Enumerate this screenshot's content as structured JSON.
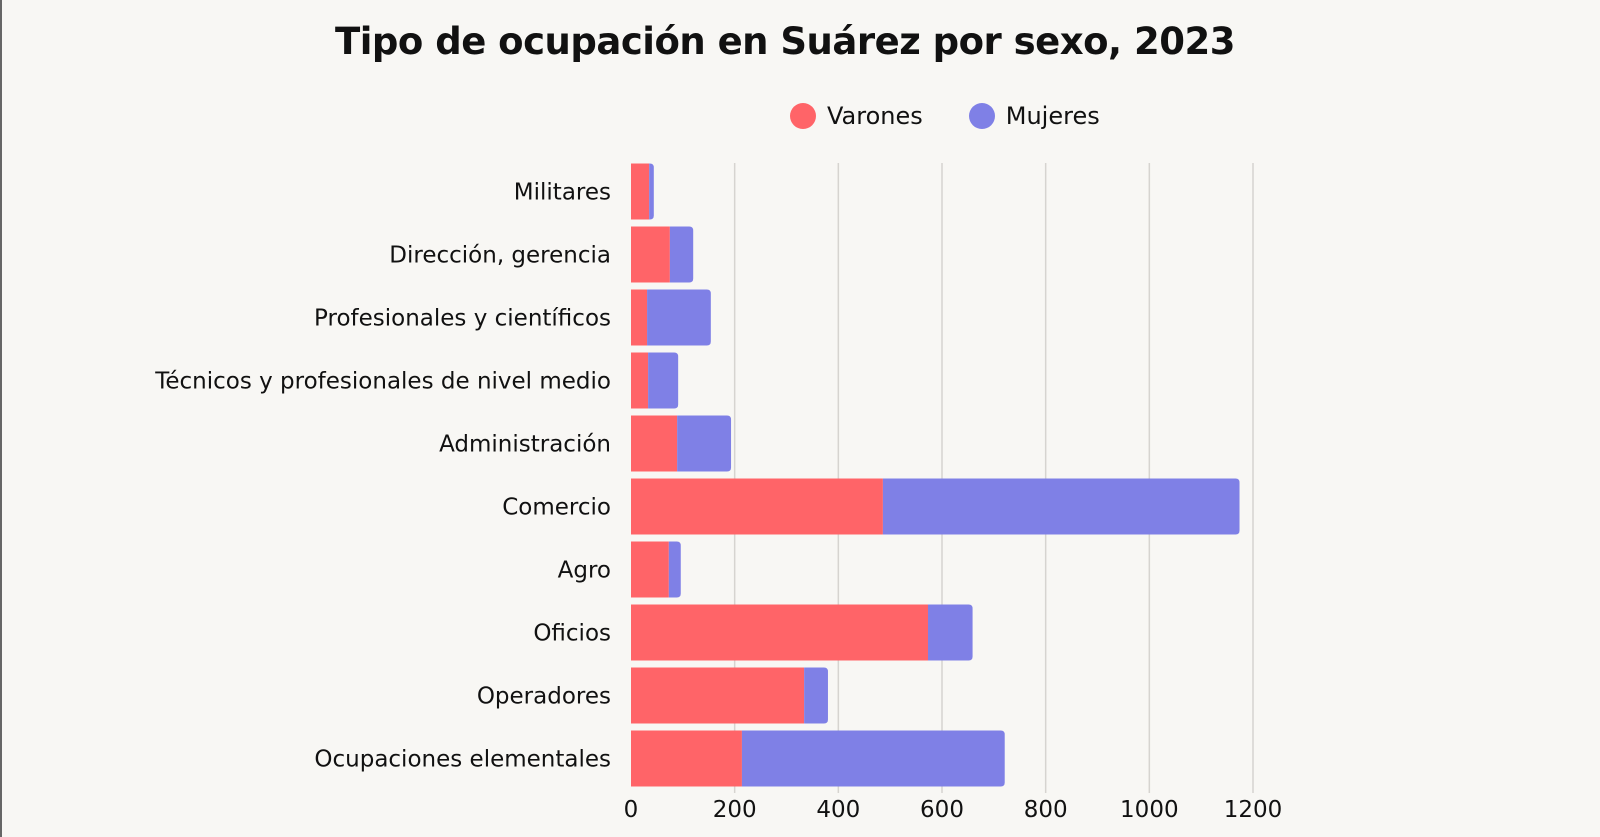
{
  "chart_data": {
    "type": "bar",
    "orientation": "horizontal",
    "stacked": true,
    "title": "Tipo de ocupación en Suárez por sexo, 2023",
    "categories": [
      "Militares",
      "Dirección, gerencia",
      "Profesionales y científicos",
      "Técnicos y profesionales de nivel medio",
      "Administración",
      "Comercio",
      "Agro",
      "Oficios",
      "Operadores",
      "Ocupaciones elementales"
    ],
    "series": [
      {
        "name": "Varones",
        "color": "#ff6468",
        "values": [
          35,
          75,
          31,
          33,
          89,
          486,
          73,
          573,
          334,
          214
        ]
      },
      {
        "name": "Mujeres",
        "color": "#7f80e6",
        "values": [
          9,
          45,
          123,
          58,
          104,
          688,
          23,
          86,
          46,
          507
        ]
      }
    ],
    "xlim": [
      0,
      1200
    ],
    "xticks": [
      "0",
      "200",
      "400",
      "600",
      "800",
      "1000",
      "1200"
    ],
    "grid": true,
    "legend": "top"
  }
}
